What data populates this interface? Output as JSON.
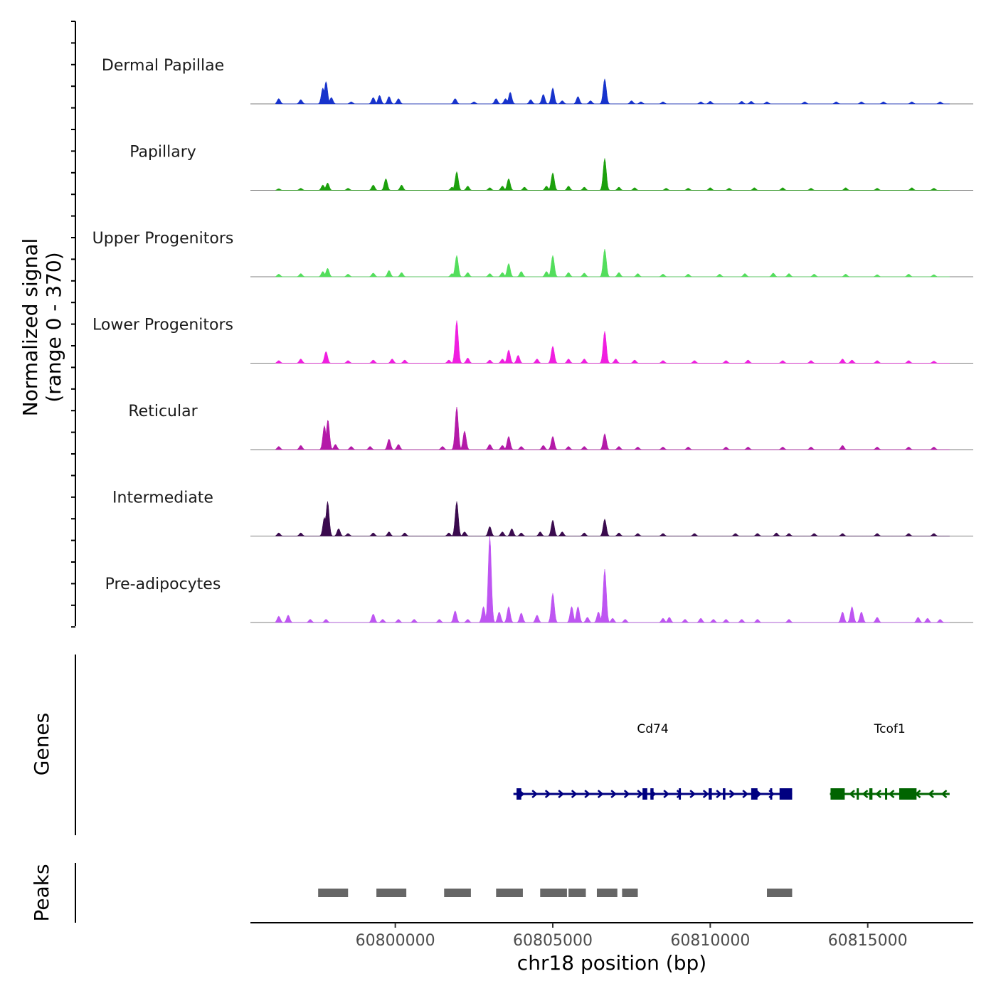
{
  "chart_data": {
    "type": "area",
    "title": "",
    "chromosome": "chr18",
    "xlabel": "chr18 position (bp)",
    "ylabel_line1": "Normalized signal",
    "ylabel_line2": "(range 0 - 370)",
    "ylim": [
      0,
      370
    ],
    "xlim": [
      60795400,
      60818350
    ],
    "x_ticks": [
      60800000,
      60805000,
      60810000,
      60815000
    ],
    "x_tick_labels": [
      "60800000",
      "60805000",
      "60810000",
      "60815000"
    ],
    "data_start": 60796200,
    "data_end": 60817600,
    "bin_size": 200,
    "series": [
      {
        "name": "Dermal Papillae",
        "color": "#1733cc",
        "peaks": [
          [
            60796300,
            10
          ],
          [
            60797000,
            8
          ],
          [
            60797700,
            30
          ],
          [
            60797800,
            42
          ],
          [
            60797970,
            12
          ],
          [
            60798600,
            4
          ],
          [
            60799300,
            12
          ],
          [
            60799500,
            16
          ],
          [
            60799800,
            14
          ],
          [
            60800100,
            10
          ],
          [
            60801900,
            10
          ],
          [
            60802500,
            4
          ],
          [
            60803200,
            10
          ],
          [
            60803500,
            10
          ],
          [
            60803650,
            22
          ],
          [
            60804300,
            8
          ],
          [
            60804700,
            18
          ],
          [
            60805000,
            30
          ],
          [
            60805300,
            6
          ],
          [
            60805800,
            14
          ],
          [
            60806200,
            6
          ],
          [
            60806650,
            47
          ],
          [
            60807500,
            6
          ],
          [
            60807800,
            4
          ],
          [
            60808500,
            4
          ],
          [
            60809700,
            4
          ],
          [
            60810000,
            5
          ],
          [
            60811000,
            5
          ],
          [
            60811300,
            5
          ],
          [
            60811800,
            4
          ],
          [
            60813000,
            4
          ],
          [
            60814000,
            4
          ],
          [
            60814800,
            4
          ],
          [
            60815500,
            4
          ],
          [
            60816400,
            4
          ],
          [
            60817300,
            4
          ]
        ]
      },
      {
        "name": "Papillary",
        "color": "#1ca00c",
        "peaks": [
          [
            60796300,
            3
          ],
          [
            60797000,
            4
          ],
          [
            60797700,
            10
          ],
          [
            60797850,
            14
          ],
          [
            60798500,
            4
          ],
          [
            60799300,
            10
          ],
          [
            60799700,
            22
          ],
          [
            60800200,
            10
          ],
          [
            60801800,
            6
          ],
          [
            60801950,
            35
          ],
          [
            60802300,
            8
          ],
          [
            60803000,
            5
          ],
          [
            60803400,
            8
          ],
          [
            60803600,
            22
          ],
          [
            60804100,
            6
          ],
          [
            60804800,
            8
          ],
          [
            60805000,
            33
          ],
          [
            60805500,
            8
          ],
          [
            60806000,
            6
          ],
          [
            60806650,
            60
          ],
          [
            60807100,
            6
          ],
          [
            60807600,
            5
          ],
          [
            60808600,
            4
          ],
          [
            60809300,
            4
          ],
          [
            60810000,
            5
          ],
          [
            60810600,
            4
          ],
          [
            60811400,
            5
          ],
          [
            60812300,
            5
          ],
          [
            60813200,
            4
          ],
          [
            60814300,
            5
          ],
          [
            60815300,
            4
          ],
          [
            60816400,
            5
          ],
          [
            60817100,
            4
          ]
        ]
      },
      {
        "name": "Upper Progenitors",
        "color": "#53de5c",
        "peaks": [
          [
            60796300,
            5
          ],
          [
            60797000,
            6
          ],
          [
            60797700,
            10
          ],
          [
            60797850,
            16
          ],
          [
            60798500,
            5
          ],
          [
            60799300,
            7
          ],
          [
            60799800,
            12
          ],
          [
            60800200,
            8
          ],
          [
            60801800,
            6
          ],
          [
            60801950,
            40
          ],
          [
            60802300,
            8
          ],
          [
            60803000,
            6
          ],
          [
            60803400,
            8
          ],
          [
            60803600,
            25
          ],
          [
            60804000,
            10
          ],
          [
            60804800,
            10
          ],
          [
            60805000,
            40
          ],
          [
            60805500,
            8
          ],
          [
            60806000,
            7
          ],
          [
            60806650,
            52
          ],
          [
            60807100,
            8
          ],
          [
            60807700,
            6
          ],
          [
            60808500,
            5
          ],
          [
            60809300,
            5
          ],
          [
            60810300,
            5
          ],
          [
            60811100,
            6
          ],
          [
            60812000,
            7
          ],
          [
            60812500,
            6
          ],
          [
            60813300,
            5
          ],
          [
            60814300,
            5
          ],
          [
            60815300,
            4
          ],
          [
            60816300,
            5
          ],
          [
            60817100,
            4
          ]
        ]
      },
      {
        "name": "Lower Progenitors",
        "color": "#f01ee0",
        "peaks": [
          [
            60796300,
            5
          ],
          [
            60797000,
            8
          ],
          [
            60797800,
            22
          ],
          [
            60798500,
            5
          ],
          [
            60799300,
            6
          ],
          [
            60799900,
            8
          ],
          [
            60800300,
            6
          ],
          [
            60801700,
            6
          ],
          [
            60801950,
            80
          ],
          [
            60802300,
            10
          ],
          [
            60803000,
            6
          ],
          [
            60803400,
            8
          ],
          [
            60803600,
            25
          ],
          [
            60803900,
            15
          ],
          [
            60804500,
            8
          ],
          [
            60805000,
            32
          ],
          [
            60805500,
            8
          ],
          [
            60806000,
            8
          ],
          [
            60806650,
            60
          ],
          [
            60807000,
            8
          ],
          [
            60807600,
            6
          ],
          [
            60808500,
            5
          ],
          [
            60809500,
            5
          ],
          [
            60810500,
            5
          ],
          [
            60811200,
            6
          ],
          [
            60812300,
            5
          ],
          [
            60813200,
            5
          ],
          [
            60814200,
            8
          ],
          [
            60814500,
            6
          ],
          [
            60815300,
            5
          ],
          [
            60816300,
            5
          ],
          [
            60817100,
            4
          ]
        ]
      },
      {
        "name": "Reticular",
        "color": "#b41aa8",
        "peaks": [
          [
            60796300,
            6
          ],
          [
            60797000,
            8
          ],
          [
            60797750,
            45
          ],
          [
            60797860,
            56
          ],
          [
            60798100,
            10
          ],
          [
            60798600,
            6
          ],
          [
            60799200,
            6
          ],
          [
            60799800,
            20
          ],
          [
            60800100,
            10
          ],
          [
            60801500,
            6
          ],
          [
            60801950,
            80
          ],
          [
            60802200,
            35
          ],
          [
            60803000,
            10
          ],
          [
            60803400,
            8
          ],
          [
            60803600,
            25
          ],
          [
            60804000,
            6
          ],
          [
            60804700,
            8
          ],
          [
            60805000,
            25
          ],
          [
            60805500,
            6
          ],
          [
            60806000,
            6
          ],
          [
            60806650,
            30
          ],
          [
            60807100,
            6
          ],
          [
            60807700,
            5
          ],
          [
            60808500,
            5
          ],
          [
            60809300,
            5
          ],
          [
            60810500,
            5
          ],
          [
            60811200,
            5
          ],
          [
            60812300,
            5
          ],
          [
            60813200,
            5
          ],
          [
            60814200,
            8
          ],
          [
            60815300,
            5
          ],
          [
            60816300,
            5
          ],
          [
            60817100,
            5
          ]
        ]
      },
      {
        "name": "Intermediate",
        "color": "#3a0a4e",
        "peaks": [
          [
            60796300,
            6
          ],
          [
            60797000,
            6
          ],
          [
            60797750,
            35
          ],
          [
            60797850,
            65
          ],
          [
            60798200,
            14
          ],
          [
            60798500,
            5
          ],
          [
            60799300,
            6
          ],
          [
            60799800,
            8
          ],
          [
            60800300,
            6
          ],
          [
            60801700,
            6
          ],
          [
            60801950,
            65
          ],
          [
            60802200,
            8
          ],
          [
            60803000,
            18
          ],
          [
            60803400,
            8
          ],
          [
            60803700,
            14
          ],
          [
            60804000,
            6
          ],
          [
            60804600,
            8
          ],
          [
            60805000,
            30
          ],
          [
            60805300,
            8
          ],
          [
            60806000,
            6
          ],
          [
            60806650,
            32
          ],
          [
            60807100,
            6
          ],
          [
            60807700,
            5
          ],
          [
            60808500,
            5
          ],
          [
            60809500,
            5
          ],
          [
            60810800,
            5
          ],
          [
            60811500,
            5
          ],
          [
            60812100,
            6
          ],
          [
            60812500,
            5
          ],
          [
            60813300,
            5
          ],
          [
            60814200,
            5
          ],
          [
            60815300,
            5
          ],
          [
            60816300,
            5
          ],
          [
            60817100,
            5
          ]
        ]
      },
      {
        "name": "Pre-adipocytes",
        "color": "#be55f2",
        "peaks": [
          [
            60796300,
            12
          ],
          [
            60796600,
            14
          ],
          [
            60797300,
            6
          ],
          [
            60797800,
            6
          ],
          [
            60799300,
            16
          ],
          [
            60799600,
            6
          ],
          [
            60800100,
            6
          ],
          [
            60800600,
            6
          ],
          [
            60801400,
            6
          ],
          [
            60801900,
            22
          ],
          [
            60802300,
            6
          ],
          [
            60802800,
            30
          ],
          [
            60803000,
            162
          ],
          [
            60803300,
            20
          ],
          [
            60803600,
            30
          ],
          [
            60804000,
            18
          ],
          [
            60804500,
            14
          ],
          [
            60805000,
            55
          ],
          [
            60805600,
            30
          ],
          [
            60805800,
            30
          ],
          [
            60806100,
            10
          ],
          [
            60806450,
            20
          ],
          [
            60806650,
            100
          ],
          [
            60806900,
            8
          ],
          [
            60807300,
            6
          ],
          [
            60808500,
            8
          ],
          [
            60808700,
            10
          ],
          [
            60809200,
            6
          ],
          [
            60809700,
            8
          ],
          [
            60810100,
            6
          ],
          [
            60810500,
            6
          ],
          [
            60811000,
            6
          ],
          [
            60811500,
            6
          ],
          [
            60812500,
            6
          ],
          [
            60814200,
            20
          ],
          [
            60814500,
            30
          ],
          [
            60814800,
            20
          ],
          [
            60815300,
            10
          ],
          [
            60816600,
            10
          ],
          [
            60816900,
            8
          ],
          [
            60817300,
            6
          ]
        ]
      }
    ],
    "genes": [
      {
        "name": "Cd74",
        "color": "#000080",
        "strand": "+",
        "start": 60803750,
        "end": 60812600,
        "exons": [
          [
            60803850,
            60804000
          ],
          [
            60807850,
            60808000
          ],
          [
            60808100,
            60808200
          ],
          [
            60809000,
            60809050
          ],
          [
            60809950,
            60810050
          ],
          [
            60810400,
            60810480
          ],
          [
            60811300,
            60811500
          ],
          [
            60811900,
            60811950
          ],
          [
            60812200,
            60812600
          ]
        ]
      },
      {
        "name": "Tcof1",
        "color": "#006400",
        "strand": "-",
        "start": 60813800,
        "end": 60817600,
        "exons": [
          [
            60813820,
            60814270
          ],
          [
            60814650,
            60814700
          ],
          [
            60815050,
            60815150
          ],
          [
            60815550,
            60815600
          ],
          [
            60816000,
            60816550
          ]
        ]
      }
    ],
    "peaks_track": [
      [
        60797550,
        60798500
      ],
      [
        60799400,
        60800350
      ],
      [
        60801550,
        60802400
      ],
      [
        60803200,
        60804050
      ],
      [
        60804600,
        60805450
      ],
      [
        60805500,
        60806050
      ],
      [
        60806400,
        60807050
      ],
      [
        60807200,
        60807700
      ],
      [
        60811800,
        60812600
      ]
    ],
    "track_labels": {
      "genes": "Genes",
      "peaks": "Peaks"
    }
  }
}
